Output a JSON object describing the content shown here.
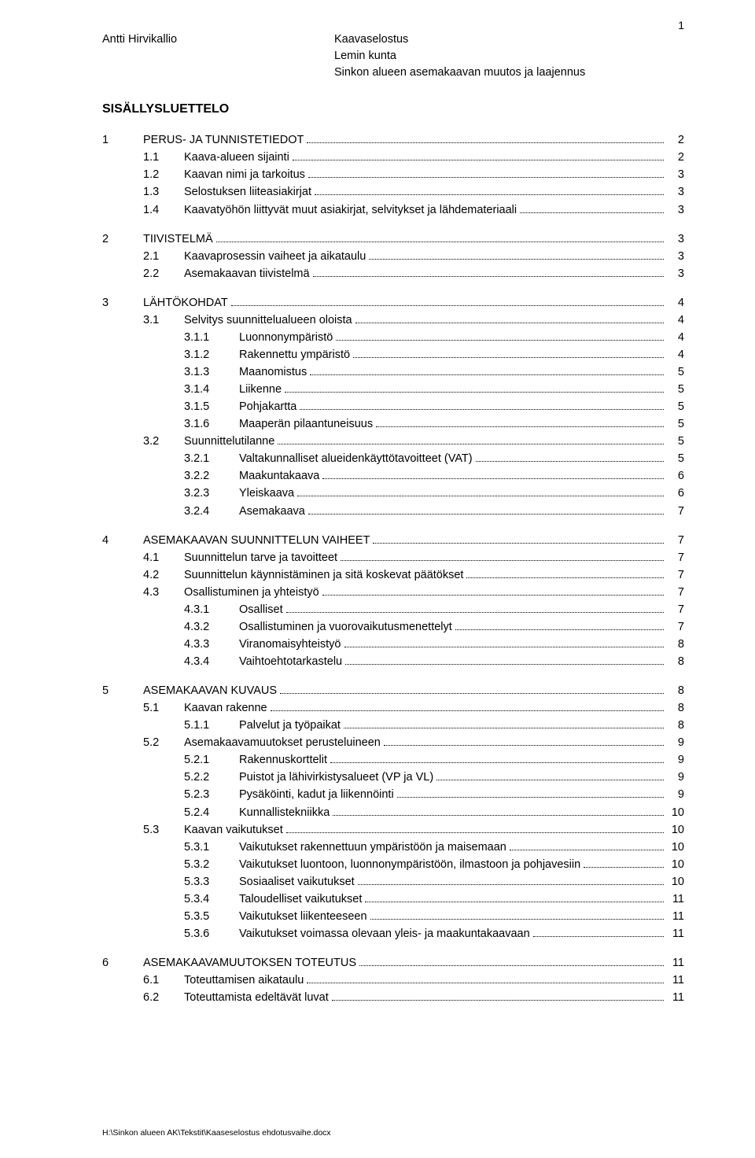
{
  "page_number": "1",
  "header": {
    "left": "Antti Hirvikallio",
    "right_lines": [
      "Kaavaselostus",
      "Lemin kunta",
      "Sinkon alueen asemakaavan muutos ja laajennus"
    ]
  },
  "title": "SISÄLLYSLUETTELO",
  "footer": "H:\\Sinkon alueen AK\\Tekstit\\Kaaseselostus ehdotusvaihe.docx",
  "toc": [
    {
      "lvl": 1,
      "num": "1",
      "label": "PERUS- JA TUNNISTETIEDOT",
      "page": "2"
    },
    {
      "lvl": 2,
      "num": "1.1",
      "label": "Kaava-alueen sijainti",
      "page": "2"
    },
    {
      "lvl": 2,
      "num": "1.2",
      "label": "Kaavan nimi ja tarkoitus",
      "page": "3"
    },
    {
      "lvl": 2,
      "num": "1.3",
      "label": "Selostuksen liiteasiakirjat",
      "page": "3"
    },
    {
      "lvl": 2,
      "num": "1.4",
      "label": "Kaavatyöhön liittyvät muut asiakirjat, selvitykset ja lähdemateriaali",
      "page": "3"
    },
    {
      "gap": true
    },
    {
      "lvl": 1,
      "num": "2",
      "label": "TIIVISTELMÄ",
      "page": "3"
    },
    {
      "lvl": 2,
      "num": "2.1",
      "label": "Kaavaprosessin vaiheet ja aikataulu",
      "page": "3"
    },
    {
      "lvl": 2,
      "num": "2.2",
      "label": "Asemakaavan tiivistelmä",
      "page": "3"
    },
    {
      "gap": true
    },
    {
      "lvl": 1,
      "num": "3",
      "label": "LÄHTÖKOHDAT",
      "page": "4"
    },
    {
      "lvl": 2,
      "num": "3.1",
      "label": "Selvitys suunnittelualueen oloista",
      "page": "4"
    },
    {
      "lvl": 3,
      "num": "3.1.1",
      "label": "Luonnonympäristö",
      "page": "4"
    },
    {
      "lvl": 3,
      "num": "3.1.2",
      "label": "Rakennettu ympäristö",
      "page": "4"
    },
    {
      "lvl": 3,
      "num": "3.1.3",
      "label": "Maanomistus",
      "page": "5"
    },
    {
      "lvl": 3,
      "num": "3.1.4",
      "label": "Liikenne",
      "page": "5"
    },
    {
      "lvl": 3,
      "num": "3.1.5",
      "label": "Pohjakartta",
      "page": "5"
    },
    {
      "lvl": 3,
      "num": "3.1.6",
      "label": "Maaperän pilaantuneisuus",
      "page": "5"
    },
    {
      "lvl": 2,
      "num": "3.2",
      "label": "Suunnittelutilanne",
      "page": "5"
    },
    {
      "lvl": 3,
      "num": "3.2.1",
      "label": "Valtakunnalliset alueidenkäyttötavoitteet (VAT)",
      "page": "5"
    },
    {
      "lvl": 3,
      "num": "3.2.2",
      "label": "Maakuntakaava",
      "page": "6"
    },
    {
      "lvl": 3,
      "num": "3.2.3",
      "label": "Yleiskaava",
      "page": "6"
    },
    {
      "lvl": 3,
      "num": "3.2.4",
      "label": "Asemakaava",
      "page": "7"
    },
    {
      "gap": true
    },
    {
      "lvl": 1,
      "num": "4",
      "label": "ASEMAKAAVAN SUUNNITTELUN VAIHEET",
      "page": "7"
    },
    {
      "lvl": 2,
      "num": "4.1",
      "label": "Suunnittelun tarve ja tavoitteet",
      "page": "7"
    },
    {
      "lvl": 2,
      "num": "4.2",
      "label": "Suunnittelun käynnistäminen ja sitä koskevat päätökset",
      "page": "7"
    },
    {
      "lvl": 2,
      "num": "4.3",
      "label": "Osallistuminen ja yhteistyö",
      "page": "7"
    },
    {
      "lvl": 3,
      "num": "4.3.1",
      "label": "Osalliset",
      "page": "7"
    },
    {
      "lvl": 3,
      "num": "4.3.2",
      "label": "Osallistuminen ja vuorovaikutusmenettelyt",
      "page": "7"
    },
    {
      "lvl": 3,
      "num": "4.3.3",
      "label": "Viranomaisyhteistyö",
      "page": "8"
    },
    {
      "lvl": 3,
      "num": "4.3.4",
      "label": "Vaihtoehtotarkastelu",
      "page": "8"
    },
    {
      "gap": true
    },
    {
      "lvl": 1,
      "num": "5",
      "label": "ASEMAKAAVAN KUVAUS",
      "page": "8"
    },
    {
      "lvl": 2,
      "num": "5.1",
      "label": "Kaavan rakenne",
      "page": "8"
    },
    {
      "lvl": 3,
      "num": "5.1.1",
      "label": "Palvelut ja työpaikat",
      "page": "8"
    },
    {
      "lvl": 2,
      "num": "5.2",
      "label": "Asemakaavamuutokset perusteluineen",
      "page": "9"
    },
    {
      "lvl": 3,
      "num": "5.2.1",
      "label": "Rakennuskorttelit",
      "page": "9"
    },
    {
      "lvl": 3,
      "num": "5.2.2",
      "label": "Puistot ja lähivirkistysalueet (VP ja VL)",
      "page": "9"
    },
    {
      "lvl": 3,
      "num": "5.2.3",
      "label": "Pysäköinti, kadut ja liikennöinti",
      "page": "9"
    },
    {
      "lvl": 3,
      "num": "5.2.4",
      "label": "Kunnallistekniikka",
      "page": "10"
    },
    {
      "lvl": 2,
      "num": "5.3",
      "label": "Kaavan vaikutukset",
      "page": "10"
    },
    {
      "lvl": 3,
      "num": "5.3.1",
      "label": "Vaikutukset rakennettuun ympäristöön ja maisemaan",
      "page": "10"
    },
    {
      "lvl": 3,
      "num": "5.3.2",
      "label": "Vaikutukset luontoon, luonnonympäristöön, ilmastoon ja pohjavesiin",
      "page": "10"
    },
    {
      "lvl": 3,
      "num": "5.3.3",
      "label": "Sosiaaliset vaikutukset",
      "page": "10"
    },
    {
      "lvl": 3,
      "num": "5.3.4",
      "label": "Taloudelliset vaikutukset",
      "page": "11"
    },
    {
      "lvl": 3,
      "num": "5.3.5",
      "label": "Vaikutukset liikenteeseen",
      "page": "11"
    },
    {
      "lvl": 3,
      "num": "5.3.6",
      "label": "Vaikutukset voimassa olevaan yleis- ja maakuntakaavaan",
      "page": "11"
    },
    {
      "gap": true
    },
    {
      "lvl": 1,
      "num": "6",
      "label": "ASEMAKAAVAMUUTOKSEN TOTEUTUS",
      "page": "11"
    },
    {
      "lvl": 2,
      "num": "6.1",
      "label": "Toteuttamisen aikataulu",
      "page": "11"
    },
    {
      "lvl": 2,
      "num": "6.2",
      "label": "Toteuttamista edeltävät luvat",
      "page": "11"
    }
  ]
}
